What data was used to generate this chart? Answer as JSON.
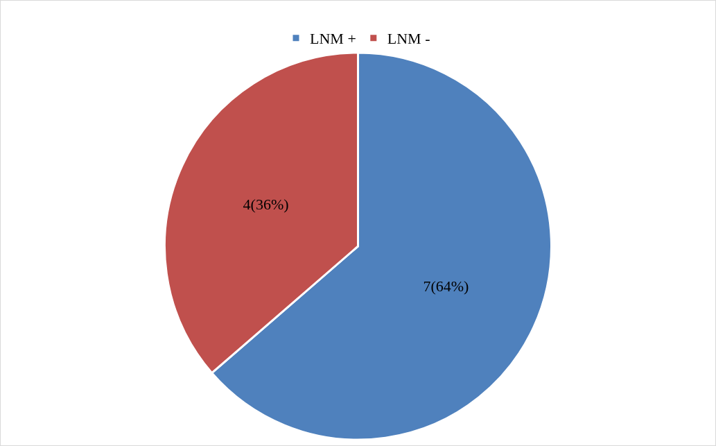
{
  "chart_data": {
    "type": "pie",
    "categories": [
      "LNM +",
      "LNM -"
    ],
    "values": [
      7,
      4
    ],
    "colors": [
      "#4f81bd",
      "#c0504d"
    ],
    "value_labels": [
      "7(64%)",
      "4(36%)"
    ],
    "legend": "top"
  }
}
